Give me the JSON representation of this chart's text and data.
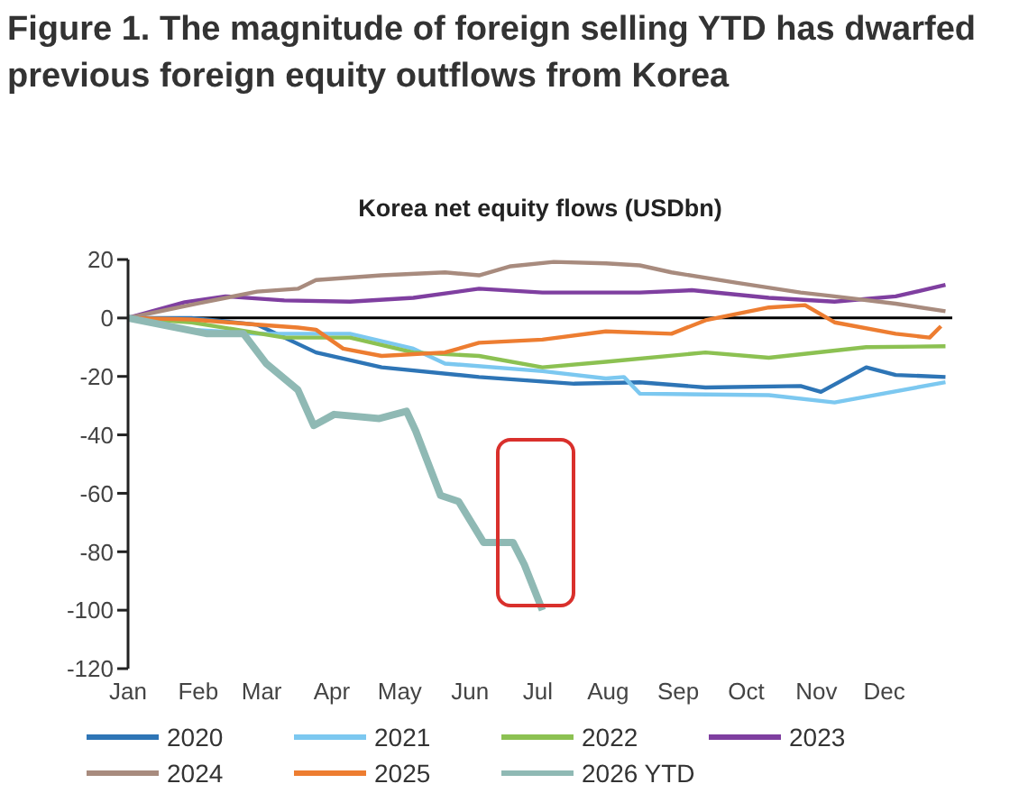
{
  "chart_data": {
    "type": "line",
    "title": "Figure 1. The magnitude of foreign selling YTD has dwarfed previous foreign equity outflows from Korea",
    "subtitle": "Korea net equity flows (USDbn)",
    "xlim": [
      "--01-01",
      "--12-31"
    ],
    "xticks": [
      {
        "value": "--01-01",
        "label": "Jan"
      },
      {
        "value": "--02-01",
        "label": "Feb"
      },
      {
        "value": "--03-01",
        "label": "Mar"
      },
      {
        "value": "--04-01",
        "label": "Apr"
      },
      {
        "value": "--05-01",
        "label": "May"
      },
      {
        "value": "--06-01",
        "label": "Jun"
      },
      {
        "value": "--07-01",
        "label": "Jul"
      },
      {
        "value": "--08-01",
        "label": "Aug"
      },
      {
        "value": "--09-01",
        "label": "Sep"
      },
      {
        "value": "--10-01",
        "label": "Oct"
      },
      {
        "value": "--11-01",
        "label": "Nov"
      },
      {
        "value": "--12-01",
        "label": "Dec"
      }
    ],
    "ylim": [
      -120,
      20
    ],
    "yticks": [
      -120,
      -100,
      -80,
      -60,
      -40,
      -20,
      0,
      20
    ],
    "legend": "bottom",
    "marker": "none",
    "line_style": "solid",
    "ref_lines": [
      {
        "axis": "y",
        "value": 0,
        "color": "#000000"
      }
    ],
    "series": [
      {
        "name": "2020",
        "color": "#2e75b6",
        "x": [
          "--01-01",
          "--01-29",
          "--02-27",
          "--03-25",
          "--04-23",
          "--06-05",
          "--07-17",
          "--08-15",
          "--09-13",
          "--10-25",
          "--11-03",
          "--11-23",
          "--12-06",
          "--12-28"
        ],
        "values": [
          0,
          0,
          -2.3,
          -11.8,
          -16.9,
          -20.2,
          -22.5,
          -22,
          -23.8,
          -23.3,
          -25.3,
          -16.9,
          -19.5,
          -20.2
        ]
      },
      {
        "name": "2021",
        "color": "#7cc8f0",
        "x": [
          "--01-01",
          "--01-29",
          "--02-27",
          "--04-09",
          "--05-07",
          "--05-21",
          "--07-03",
          "--07-31",
          "--08-08",
          "--08-15",
          "--10-11",
          "--11-09",
          "--12-28"
        ],
        "values": [
          0,
          -4,
          -5.4,
          -5.4,
          -10.5,
          -15.6,
          -18.2,
          -20.7,
          -20.2,
          -25.9,
          -26.4,
          -28.9,
          -22
        ]
      },
      {
        "name": "2022",
        "color": "#8cc152",
        "x": [
          "--01-01",
          "--01-29",
          "--03-11",
          "--04-09",
          "--05-07",
          "--06-05",
          "--07-03",
          "--07-31",
          "--09-13",
          "--10-11",
          "--11-23",
          "--12-28"
        ],
        "values": [
          0,
          -1.5,
          -6.7,
          -6.7,
          -11.8,
          -13,
          -16.9,
          -15,
          -11.8,
          -13.6,
          -10,
          -9.7
        ]
      },
      {
        "name": "2023",
        "color": "#7f3fa0",
        "x": [
          "--01-01",
          "--01-26",
          "--02-13",
          "--03-11",
          "--04-09",
          "--05-07",
          "--06-05",
          "--07-03",
          "--08-15",
          "--09-07",
          "--10-11",
          "--11-09",
          "--12-06",
          "--12-28"
        ],
        "values": [
          0,
          5.4,
          7.4,
          6,
          5.6,
          6.9,
          10,
          8.7,
          8.7,
          9.5,
          6.9,
          5.6,
          7.4,
          11.3
        ]
      },
      {
        "name": "2024",
        "color": "#a88b7e",
        "x": [
          "--01-01",
          "--02-01",
          "--02-27",
          "--03-17",
          "--03-25",
          "--04-23",
          "--05-21",
          "--06-05",
          "--06-19",
          "--07-08",
          "--07-31",
          "--08-15",
          "--08-29",
          "--09-27",
          "--10-25",
          "--11-09",
          "--12-06",
          "--12-28"
        ],
        "values": [
          0,
          5,
          9,
          10,
          13,
          14.6,
          15.6,
          14.6,
          17.7,
          19.2,
          18.7,
          18,
          15.6,
          12,
          8.7,
          7.4,
          4.9,
          2.3
        ]
      },
      {
        "name": "2025",
        "color": "#ed7d31",
        "x": [
          "--01-01",
          "--01-29",
          "--02-27",
          "--03-17",
          "--03-25",
          "--04-06",
          "--04-23",
          "--05-21",
          "--06-05",
          "--07-03",
          "--07-31",
          "--08-29",
          "--09-13",
          "--10-11",
          "--10-27",
          "--11-09",
          "--12-06",
          "--12-21",
          "--12-26"
        ],
        "values": [
          0,
          -0.5,
          -2.3,
          -3.3,
          -4,
          -10.5,
          -13,
          -11.8,
          -8.5,
          -7.4,
          -4.6,
          -5.4,
          -0.8,
          3.6,
          4.4,
          -1.5,
          -5.4,
          -6.7,
          -2.8
        ]
      },
      {
        "name": "2026 YTD",
        "color": "#8fb9b4",
        "x": [
          "--01-01",
          "--02-05",
          "--02-21",
          "--03-03",
          "--03-17",
          "--03-24",
          "--04-02",
          "--04-22",
          "--05-04",
          "--05-08",
          "--05-19",
          "--05-27",
          "--06-07",
          "--06-20",
          "--06-25",
          "--07-03"
        ],
        "values": [
          0,
          -5.4,
          -5.4,
          -15.6,
          -24.6,
          -36.8,
          -33,
          -34.4,
          -31.9,
          -38.6,
          -60.7,
          -62.8,
          -76.8,
          -76.8,
          -84.4,
          -100
        ]
      }
    ]
  }
}
